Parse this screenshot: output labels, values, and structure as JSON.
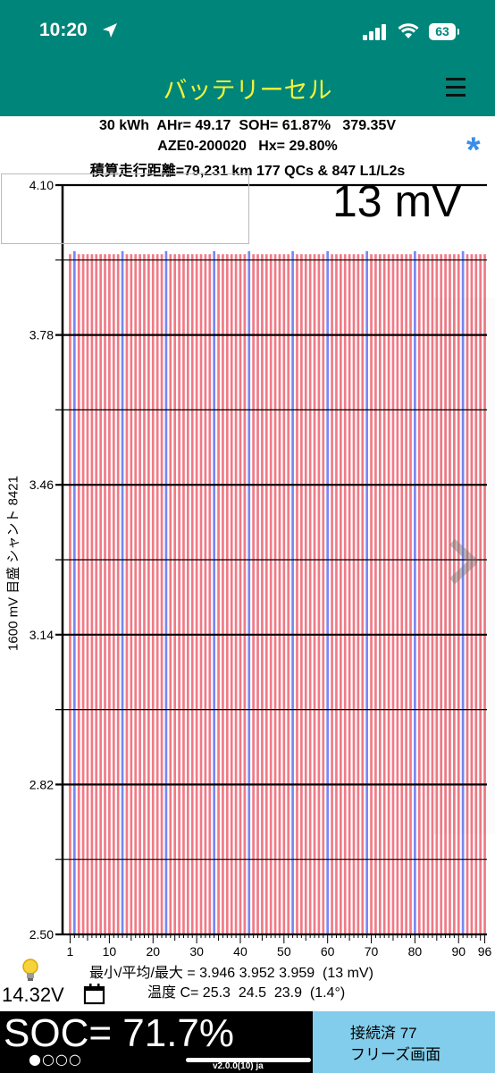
{
  "status_bar": {
    "time": "10:20",
    "battery": "63"
  },
  "header": {
    "title": "バッテリーセル"
  },
  "info": {
    "line1": "30 kWh  AHr= 49.17  SOH= 61.87%   379.35V",
    "line2": "AZE0-200020   Hx= 29.80%",
    "line3": "積算走行距離=79,231 km 177 QCs & 847 L1/L2s"
  },
  "delta_mv": "13 mV",
  "y_axis_label": "1600 mV 目盛  シャント 8421",
  "stats": {
    "minmax": "最小/平均/最大 = 3.946 3.952 3.959  (13 mV)",
    "temp": "温度 C= 25.3  24.5  23.9  (1.4°)"
  },
  "aux_voltage": "14.32V",
  "soc": "SOC= 71.7%",
  "page_dots": "●○○○",
  "version": "v2.0.0(10) ja",
  "connection": {
    "line1": "接続済 77",
    "line2": "フリーズ画面"
  },
  "colors": {
    "teal": "#00857a",
    "title_yellow": "#f5f23a",
    "bar_red": "#f07a86",
    "bar_blue": "#7a86f2",
    "panel_blue": "#82cdeb"
  },
  "icons": [
    "location-arrow-icon",
    "signal-icon",
    "wifi-icon",
    "battery-icon",
    "menu-icon",
    "asterisk-icon",
    "chevron-right-icon",
    "lightbulb-icon",
    "calendar-icon"
  ],
  "chart_data": {
    "type": "bar",
    "title": "",
    "xlabel": "",
    "ylabel": "1600 mV 目盛  シャント 8421",
    "x_tick_labels": [
      "1",
      "10",
      "20",
      "30",
      "40",
      "50",
      "60",
      "70",
      "80",
      "90",
      "96"
    ],
    "y_tick_labels": [
      "4.10",
      "3.78",
      "3.46",
      "3.14",
      "2.82",
      "2.50"
    ],
    "ylim": [
      2.5,
      4.1
    ],
    "cell_count": 96,
    "highlighted_cells_blue": [
      2,
      13,
      23,
      34,
      42,
      52,
      60,
      69,
      80,
      91
    ],
    "cell_voltage_min": 3.946,
    "cell_voltage_avg": 3.952,
    "cell_voltage_max": 3.959,
    "grid": true,
    "legend": "none"
  }
}
